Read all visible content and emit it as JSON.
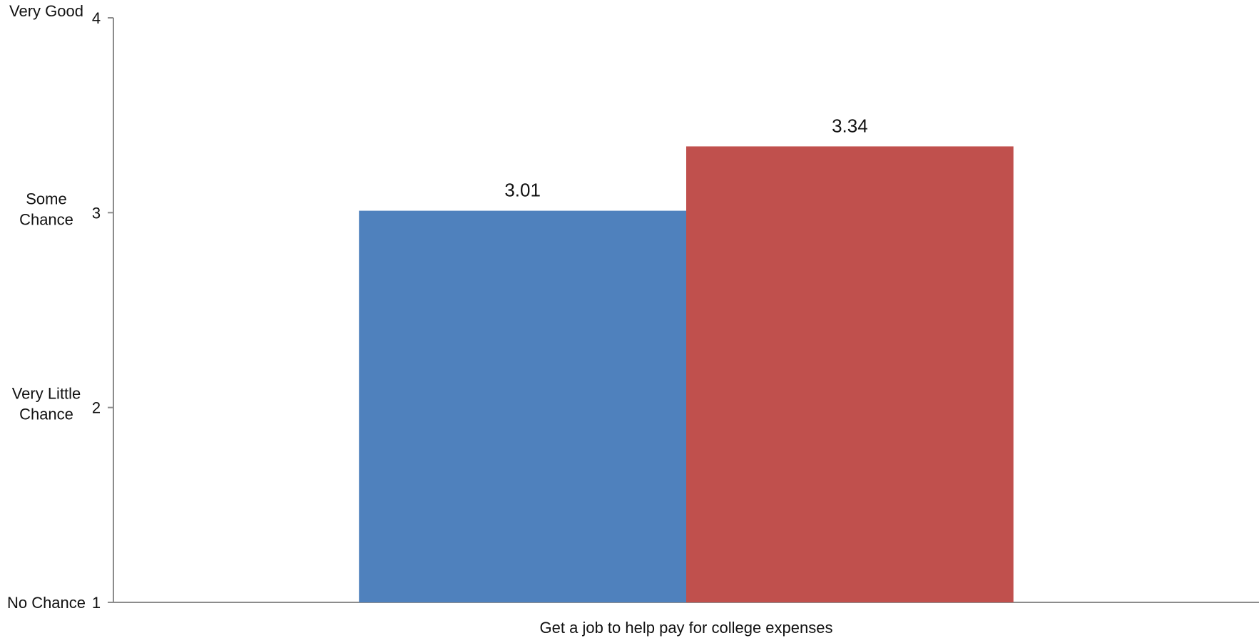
{
  "chart_data": {
    "type": "bar",
    "title": "",
    "xlabel": "",
    "ylabel": "",
    "categories": [
      "Get a job to help pay for college expenses"
    ],
    "series": [
      {
        "values": [
          3.01
        ],
        "color": "#4F81BD"
      },
      {
        "values": [
          3.34
        ],
        "color": "#C0504D"
      }
    ],
    "ylim": [
      1,
      4
    ],
    "yticks": [
      1,
      2,
      3,
      4
    ],
    "ytick_text_labels": [
      {
        "value": 4,
        "lines": [
          "Very Good"
        ]
      },
      {
        "value": 3,
        "lines": [
          "Some",
          "Chance"
        ]
      },
      {
        "value": 2,
        "lines": [
          "Very Little",
          "Chance"
        ]
      },
      {
        "value": 1,
        "lines": [
          "No Chance"
        ]
      }
    ],
    "data_labels": [
      "3.01",
      "3.34"
    ],
    "grid": false,
    "legend": "none"
  }
}
